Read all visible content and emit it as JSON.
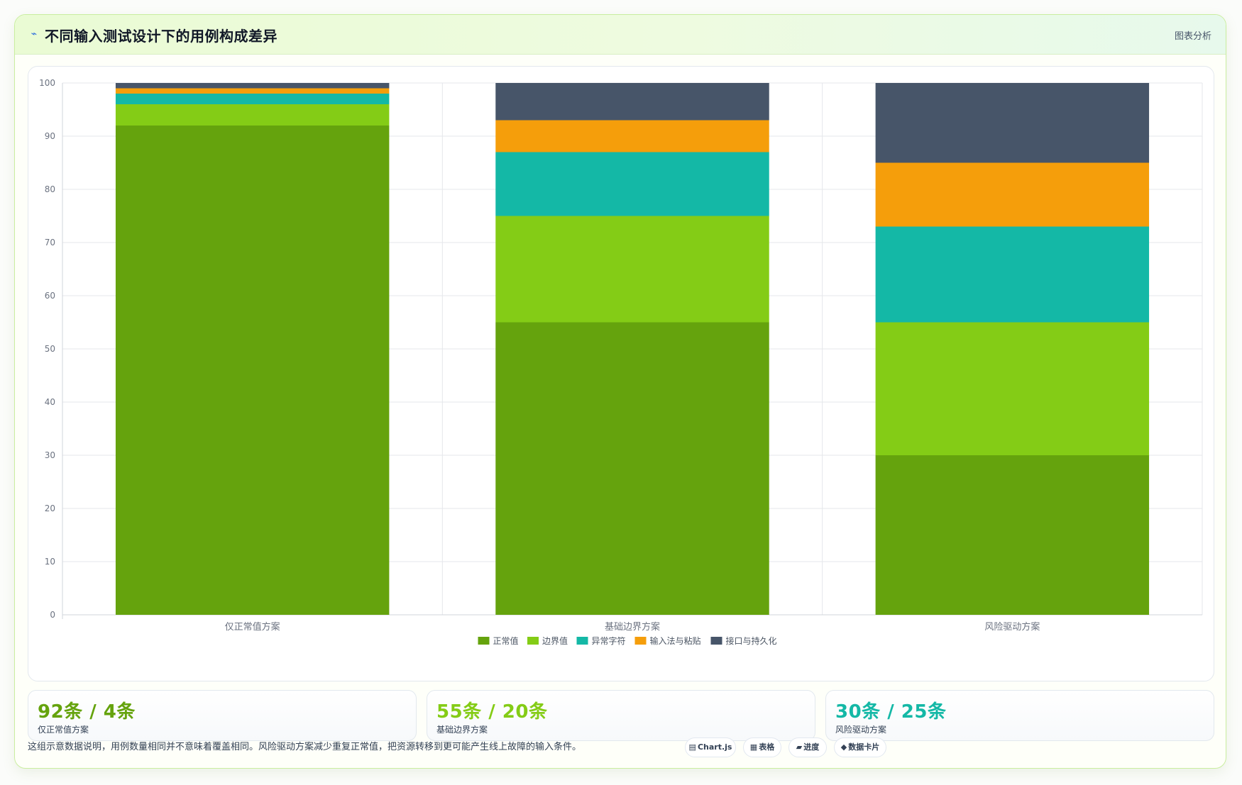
{
  "header": {
    "icon": "activity-icon",
    "title": "不同输入测试设计下的用例构成差异",
    "right_label": "图表分析"
  },
  "chart_data": {
    "type": "bar",
    "stacked": true,
    "categories": [
      "仅正常值方案",
      "基础边界方案",
      "风险驱动方案"
    ],
    "series": [
      {
        "name": "正常值",
        "color": "#65a30d",
        "values": [
          92,
          55,
          30
        ]
      },
      {
        "name": "边界值",
        "color": "#84cc16",
        "values": [
          4,
          20,
          25
        ]
      },
      {
        "name": "异常字符",
        "color": "#14b8a6",
        "values": [
          2,
          12,
          18
        ]
      },
      {
        "name": "输入法与粘贴",
        "color": "#f59e0b",
        "values": [
          1,
          6,
          12
        ]
      },
      {
        "name": "接口与持久化",
        "color": "#475569",
        "values": [
          1,
          7,
          15
        ]
      }
    ],
    "ylim": [
      0,
      100
    ],
    "yticks": [
      0,
      10,
      20,
      30,
      40,
      50,
      60,
      70,
      80,
      90,
      100
    ],
    "grid": true,
    "legend": "bottom"
  },
  "stats": [
    {
      "value": "92条 / 4条",
      "label": "仅正常值方案",
      "color": "#65a30d"
    },
    {
      "value": "55条 / 20条",
      "label": "基础边界方案",
      "color": "#84cc16"
    },
    {
      "value": "30条 / 25条",
      "label": "风险驱动方案",
      "color": "#14b8a6"
    }
  ],
  "note": "这组示意数据说明，用例数量相同并不意味着覆盖相同。风险驱动方案减少重复正常值，把资源转移到更可能产生线上故障的输入条件。",
  "tags": [
    {
      "icon": "chart-icon",
      "glyph": "▤",
      "label": "Chart.js"
    },
    {
      "icon": "table-icon",
      "glyph": "▦",
      "label": "表格"
    },
    {
      "icon": "progress-icon",
      "glyph": "▰",
      "label": "进度"
    },
    {
      "icon": "card-icon",
      "glyph": "◆",
      "label": "数据卡片"
    }
  ]
}
